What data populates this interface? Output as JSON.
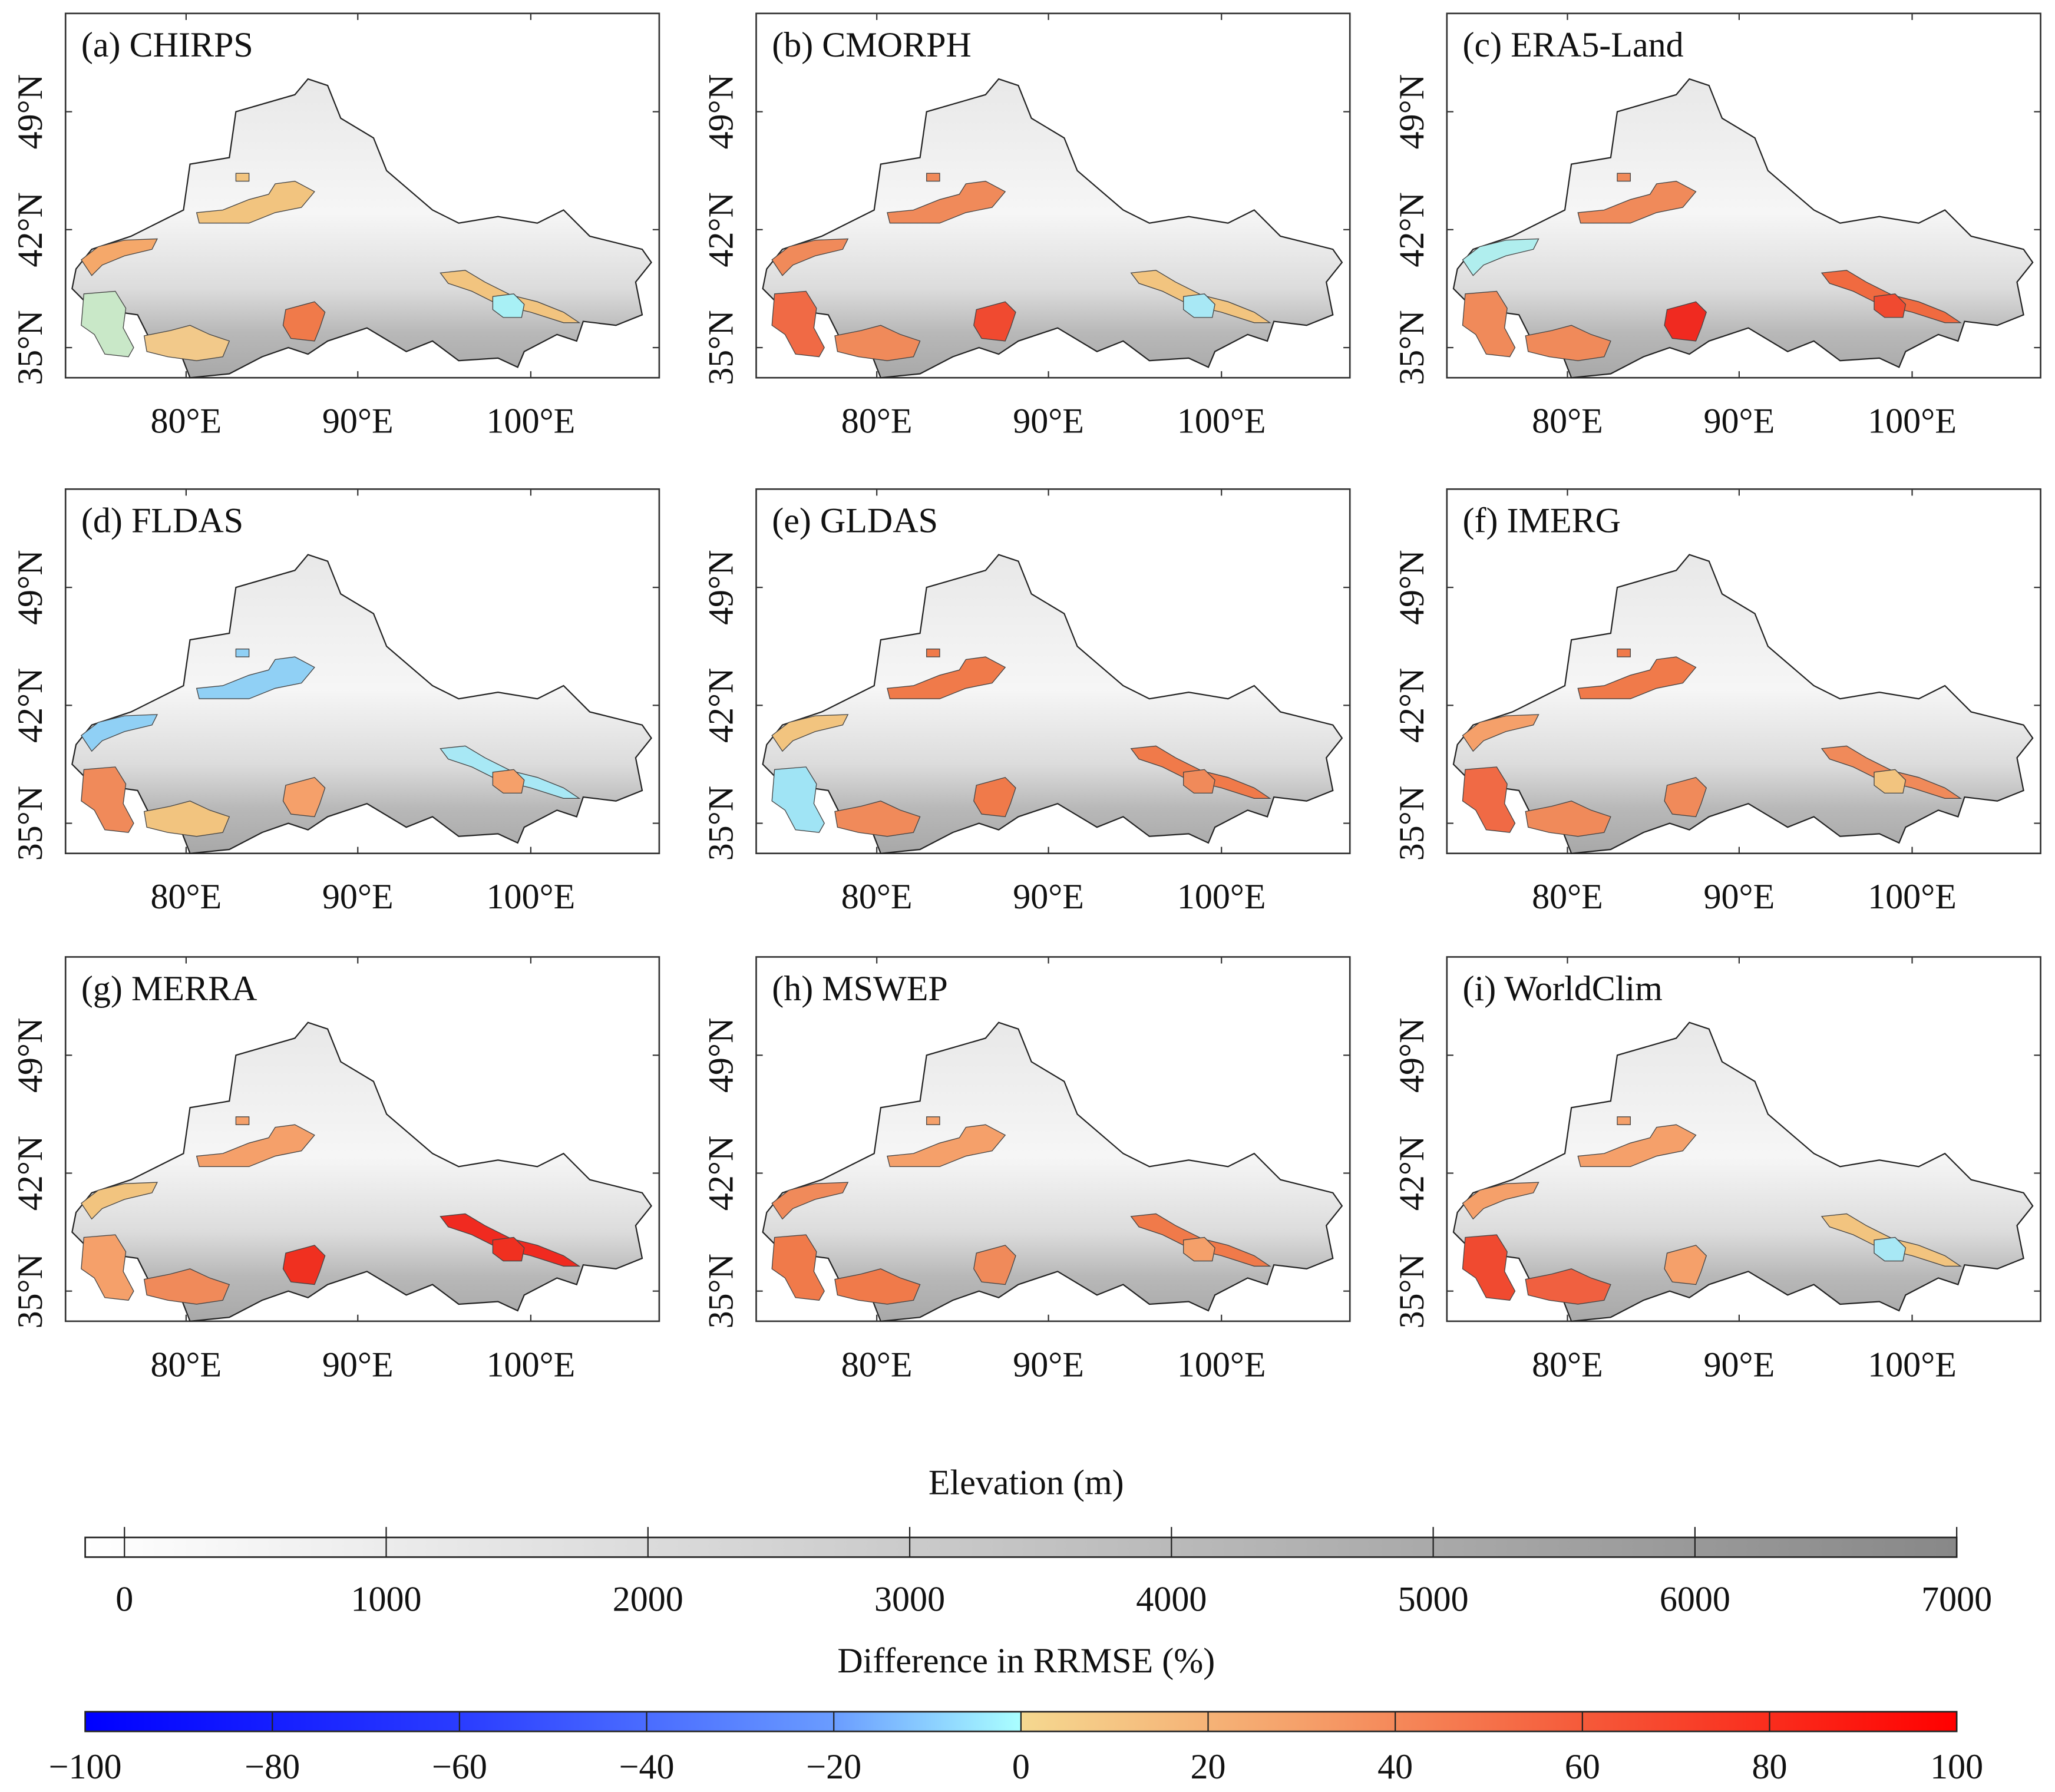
{
  "panels": [
    {
      "label": "(a) CHIRPS",
      "regions": {
        "A": "#f5a86a",
        "B": "#c9e8c8",
        "C": "#f2c98a",
        "D": "#f07a4a",
        "E": "#f2c47f",
        "F": "#f2c47f",
        "G": "#a8f0f5"
      }
    },
    {
      "label": "(b) CMORPH",
      "regions": {
        "A": "#f08a5a",
        "B": "#f06a45",
        "C": "#f08a5a",
        "D": "#f04a30",
        "E": "#f08a5a",
        "F": "#f2c47f",
        "G": "#a8e8f5"
      }
    },
    {
      "label": "(c) ERA5-Land",
      "regions": {
        "A": "#b0eeee",
        "B": "#f08a5a",
        "C": "#f08a5a",
        "D": "#f02a20",
        "E": "#f08a5a",
        "F": "#f06a40",
        "G": "#f04a30"
      }
    },
    {
      "label": "(d) FLDAS",
      "regions": {
        "A": "#90d0f5",
        "B": "#f08a5a",
        "C": "#f2c47f",
        "D": "#f5a06a",
        "E": "#90d0f5",
        "F": "#a8e8f5",
        "G": "#f5a06a"
      }
    },
    {
      "label": "(e) GLDAS",
      "regions": {
        "A": "#f2c47f",
        "B": "#a0e4f5",
        "C": "#f08a5a",
        "D": "#f07a4a",
        "E": "#f07a4a",
        "F": "#f07a4a",
        "G": "#f08a5a"
      }
    },
    {
      "label": "(f) IMERG",
      "regions": {
        "A": "#f5a06a",
        "B": "#f06a45",
        "C": "#f08a5a",
        "D": "#f08a5a",
        "E": "#f07a4a",
        "F": "#f08a5a",
        "G": "#f2c47f"
      }
    },
    {
      "label": "(g) MERRA",
      "regions": {
        "A": "#f2c47f",
        "B": "#f5a06a",
        "C": "#f08a5a",
        "D": "#f03020",
        "E": "#f5a06a",
        "F": "#f02a20",
        "G": "#f03020"
      }
    },
    {
      "label": "(h) MSWEP",
      "regions": {
        "A": "#f08a5a",
        "B": "#f07a4a",
        "C": "#f07a4a",
        "D": "#f08a5a",
        "E": "#f5a06a",
        "F": "#f07a4a",
        "G": "#f5a06a"
      }
    },
    {
      "label": "(i) WorldClim",
      "regions": {
        "A": "#f5a06a",
        "B": "#f04a30",
        "C": "#f06040",
        "D": "#f5a06a",
        "E": "#f5a06a",
        "F": "#f2c47f",
        "G": "#a8e8f5"
      }
    }
  ],
  "lat_ticks": [
    "49°N",
    "42°N",
    "35°N"
  ],
  "lon_ticks": [
    "80°E",
    "90°E",
    "100°E"
  ],
  "elevation_colorbar": {
    "title": "Elevation (m)",
    "ticks": [
      "0",
      "1000",
      "2000",
      "3000",
      "4000",
      "5000",
      "6000",
      "7000"
    ],
    "range": [
      -150,
      7000
    ],
    "colors": [
      "#ffffff",
      "#888888"
    ]
  },
  "rrmse_colorbar": {
    "title": "Difference in RRMSE (%)",
    "ticks": [
      "−100",
      "−80",
      "−60",
      "−40",
      "−20",
      "0",
      "20",
      "40",
      "60",
      "80",
      "100"
    ],
    "range": [
      -100,
      100
    ],
    "colors": [
      "#0000ff",
      "#2a3cff",
      "#4d70ff",
      "#7ab0ff",
      "#aaffff",
      "#f5d890",
      "#f5a06a",
      "#f57850",
      "#f54a30",
      "#ff0000"
    ]
  }
}
